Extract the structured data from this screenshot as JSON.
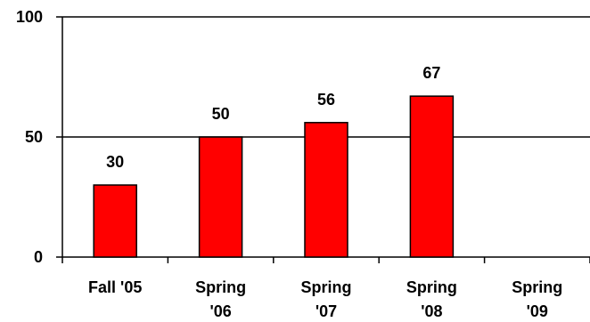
{
  "chart_data": {
    "type": "bar",
    "categories": [
      [
        "Fall '05"
      ],
      [
        "Spring",
        "'06"
      ],
      [
        "Spring",
        "'07"
      ],
      [
        "Spring",
        "'08"
      ],
      [
        "Spring",
        "'09"
      ]
    ],
    "values": [
      30,
      50,
      56,
      67,
      null
    ],
    "data_labels": [
      "30",
      "50",
      "56",
      "67",
      ""
    ],
    "ylim": [
      0,
      100
    ],
    "yticks": [
      0,
      50,
      100
    ],
    "grid": "horizontal at 50 and 100",
    "legend": "none",
    "colors": {
      "bar": "#ff0000",
      "bar_stroke": "#000000",
      "axis": "#000000",
      "gridline": "#000000"
    }
  }
}
